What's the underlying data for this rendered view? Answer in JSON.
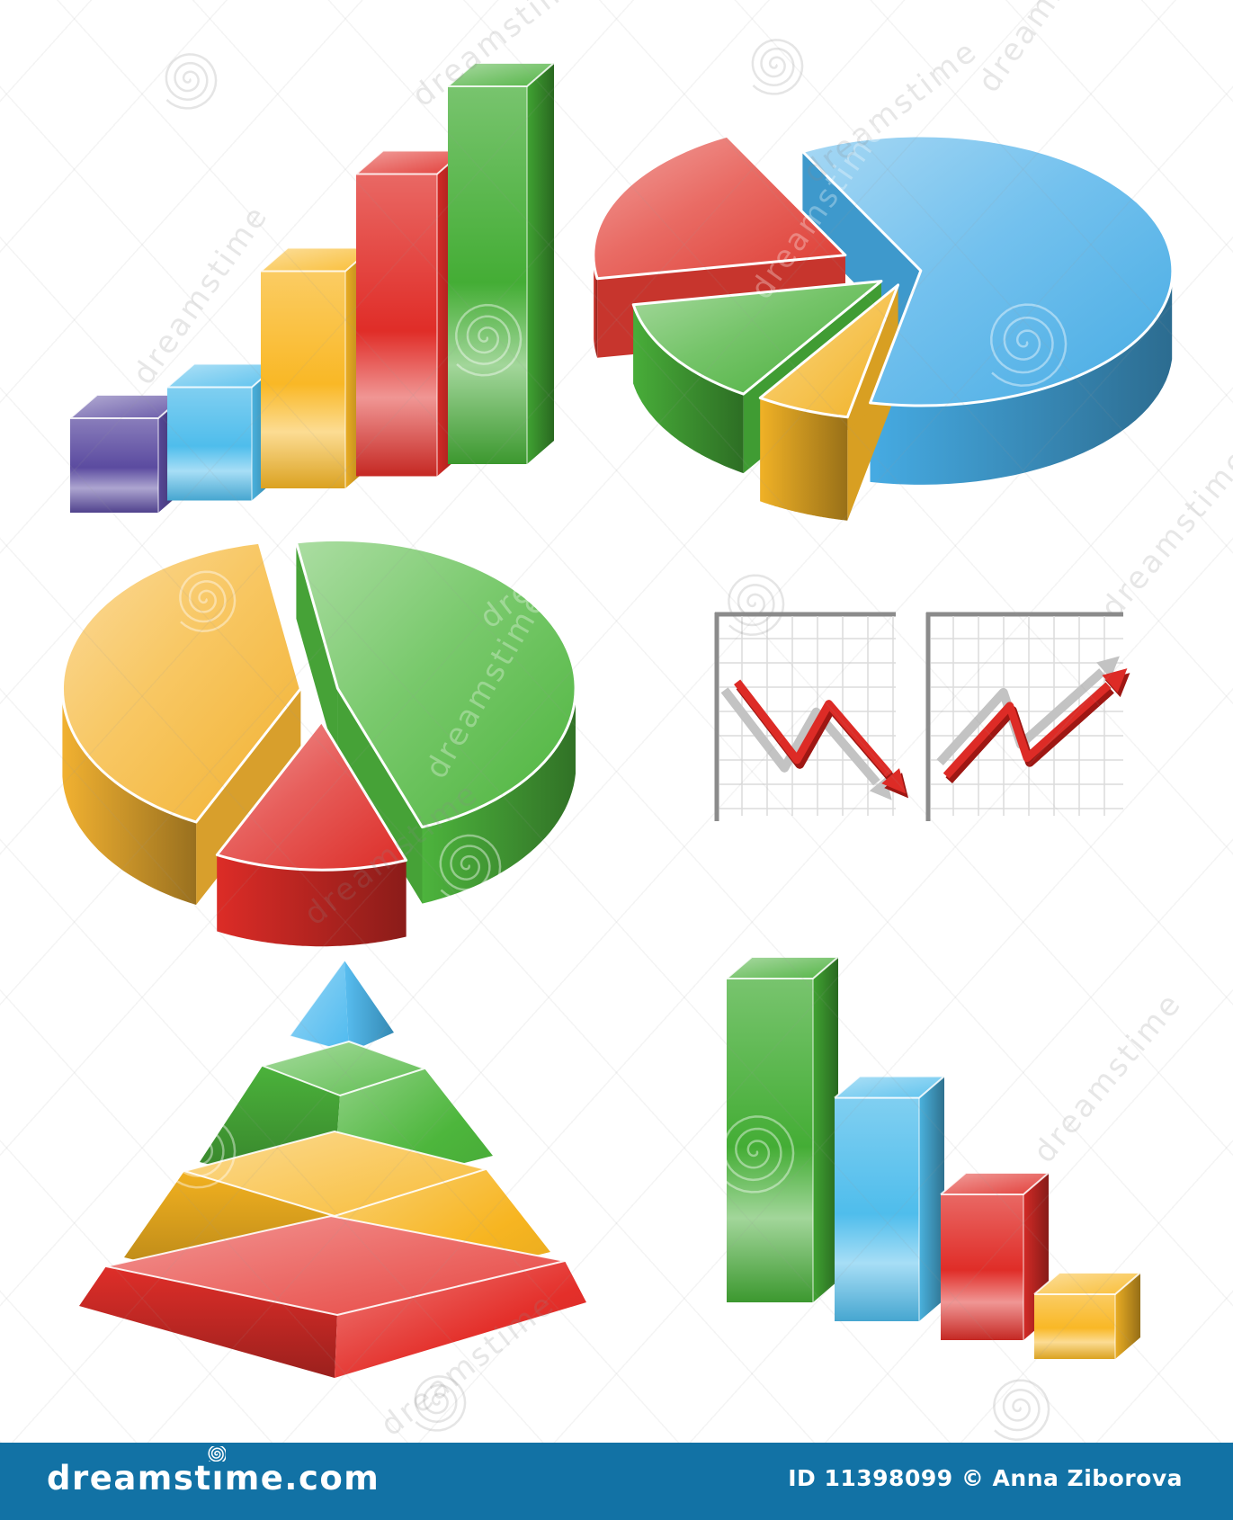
{
  "watermark": {
    "brand": "dreamstime",
    "logo_icon": "spiral",
    "text_color": "#8a8a8a",
    "on_shape_color": "#ffffff"
  },
  "footer": {
    "site_label": "dreamstime.com",
    "logo_prefix": "dreamst",
    "logo_i": "ı",
    "logo_suffix": "me.com",
    "credit": "ID 11398099 © Anna Ziborova",
    "bar_color": "#1272a5",
    "text_color": "#ffffff"
  },
  "chart_data": [
    {
      "id": "bar-chart-ascending",
      "type": "bar",
      "variant": "3d-glossy",
      "orientation": "ascending",
      "categories": [
        "purple",
        "blue",
        "yellow",
        "red",
        "green"
      ],
      "values": [
        1,
        1.2,
        2.3,
        3.2,
        4
      ],
      "colors": [
        "#5b4ba0",
        "#4fbdec",
        "#f9b826",
        "#e02d28",
        "#44ad35"
      ],
      "title": "",
      "xlabel": "",
      "ylabel": ""
    },
    {
      "id": "pie-chart-exploded",
      "type": "pie",
      "variant": "3d-exploded",
      "start_angle": -118,
      "slices": [
        {
          "label": "blue",
          "pct": 61,
          "color": "#47aee8",
          "explode": 14,
          "stack_order": 0
        },
        {
          "label": "yellow",
          "pct": 6,
          "color": "#f5b527",
          "explode": 30,
          "depth": 115,
          "stack_order": 3
        },
        {
          "label": "green",
          "pct": 13,
          "color": "#49b13a",
          "explode": 36,
          "stack_order": 2
        },
        {
          "label": "red",
          "pct": 20,
          "color": "#e23c33",
          "explode": 78,
          "stack_order": 1
        }
      ]
    },
    {
      "id": "pie-chart-two-tone",
      "type": "pie",
      "variant": "3d-exploded",
      "start_angle": -100,
      "slices": [
        {
          "label": "green",
          "pct": 47,
          "color": "#4fb83e",
          "explode": 16,
          "depth": 85,
          "stack_order": 0
        },
        {
          "label": "red",
          "pct": 13,
          "color": "#e02d28",
          "explode": 55,
          "depth": 85,
          "stack_order": 2
        },
        {
          "label": "yellow",
          "pct": 40,
          "color": "#f6b532",
          "explode": 26,
          "depth": 92,
          "stack_order": 1
        }
      ]
    },
    {
      "id": "line-chart-declining",
      "type": "line",
      "trend": "down",
      "grid": true,
      "line_color": "#dd2b26",
      "line_shade_color": "#9e1713",
      "shadow_color": "#c3c3c3",
      "axis_color": "#8b8b8b",
      "grid_color": "#dcdcdc",
      "points": [
        [
          0.1,
          0.33
        ],
        [
          0.44,
          0.72
        ],
        [
          0.62,
          0.44
        ],
        [
          0.97,
          0.8
        ]
      ],
      "shadow_offset": [
        -14,
        9
      ]
    },
    {
      "id": "line-chart-rising",
      "type": "line",
      "trend": "up",
      "grid": true,
      "line_color": "#dd2b26",
      "line_shade_color": "#9e1713",
      "shadow_color": "#c3c3c3",
      "axis_color": "#8b8b8b",
      "grid_color": "#dcdcdc",
      "points": [
        [
          0.08,
          0.8
        ],
        [
          0.41,
          0.45
        ],
        [
          0.5,
          0.71
        ],
        [
          0.93,
          0.34
        ]
      ],
      "shadow_offset": [
        -7,
        -15
      ]
    },
    {
      "id": "pyramid-chart",
      "type": "pyramid",
      "layers": [
        {
          "position": "top",
          "label": "blue",
          "color": "#45b6ee"
        },
        {
          "position": "2",
          "label": "green",
          "color": "#4db63c"
        },
        {
          "position": "3",
          "label": "yellow",
          "color": "#f7b521"
        },
        {
          "position": "base",
          "label": "red",
          "color": "#e42f2a"
        }
      ]
    },
    {
      "id": "bar-chart-descending",
      "type": "bar",
      "variant": "3d-glossy",
      "orientation": "descending",
      "categories": [
        "green",
        "blue",
        "red",
        "yellow"
      ],
      "values": [
        5,
        3.45,
        2.25,
        1
      ],
      "colors": [
        "#44ad35",
        "#4fbdec",
        "#e02d28",
        "#f9b826"
      ],
      "title": "",
      "xlabel": "",
      "ylabel": ""
    }
  ]
}
